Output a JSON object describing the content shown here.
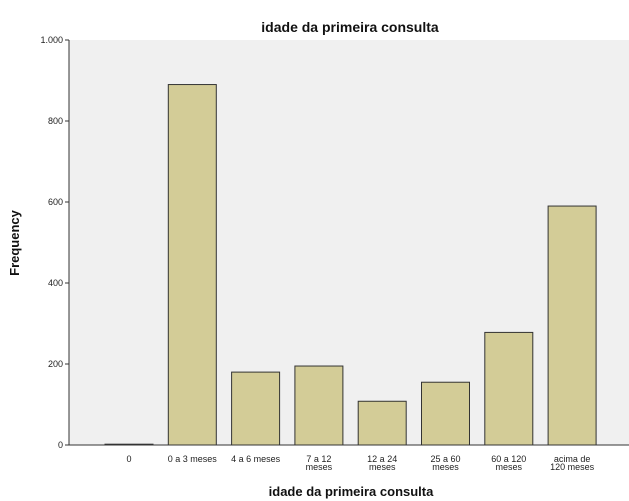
{
  "chart_data": {
    "type": "bar",
    "title": "idade da primeira consulta",
    "xlabel": "idade da primeira consulta",
    "ylabel": "Frequency",
    "categories": [
      [
        "0"
      ],
      [
        "0 a 3 meses"
      ],
      [
        "4 a 6 meses"
      ],
      [
        "7 a 12",
        "meses"
      ],
      [
        "12 a 24",
        "meses"
      ],
      [
        "25 a 60",
        "meses"
      ],
      [
        "60 a 120",
        "meses"
      ],
      [
        "acima de",
        "120 meses"
      ]
    ],
    "values": [
      2,
      890,
      180,
      195,
      108,
      155,
      278,
      590
    ],
    "ylim": [
      0,
      1000
    ],
    "yticks": [
      0,
      200,
      400,
      600,
      800,
      1000
    ],
    "ytick_labels": [
      "0",
      "200",
      "400",
      "600",
      "800",
      "1.000"
    ],
    "grid": false,
    "legend": "none",
    "colors": {
      "plot_bg": "#f0f0f0",
      "bar_fill": "#d3cc97",
      "bar_stroke": "#333333",
      "axis": "#333333"
    }
  }
}
